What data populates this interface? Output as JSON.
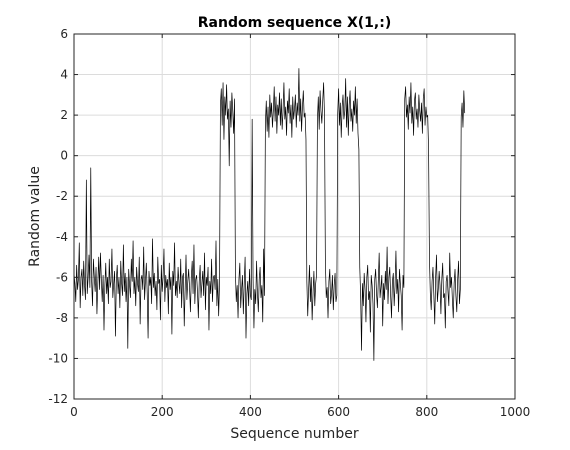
{
  "chart_data": {
    "type": "line",
    "title": "Random sequence X(1,:)",
    "xlabel": "Sequence number",
    "ylabel": "Random value",
    "xlim": [
      0,
      1000
    ],
    "ylim": [
      -12,
      6
    ],
    "xticks": [
      0,
      200,
      400,
      600,
      800,
      1000
    ],
    "yticks": [
      6,
      4,
      2,
      0,
      -2,
      -4,
      -6,
      -8,
      -10,
      -12
    ],
    "xtick_labels": [
      "0",
      "200",
      "400",
      "600",
      "800",
      "1000"
    ],
    "ytick_labels": [
      "6",
      "4",
      "2",
      "0",
      "-2",
      "-4",
      "-6",
      "-8",
      "-10",
      "-12"
    ],
    "grid": true,
    "line_color": "#000000",
    "series": [
      {
        "x_start": 0,
        "x_step": 2,
        "values": [
          -5.8,
          -6.3,
          -7.2,
          -5.4,
          -6.6,
          -6.1,
          -4.3,
          -7.5,
          -6.0,
          -5.6,
          -6.9,
          -5.2,
          -6.4,
          -7.1,
          -1.2,
          -6.8,
          -6.0,
          -4.9,
          -6.5,
          -0.6,
          -6.2,
          -7.4,
          -5.1,
          -6.0,
          -6.7,
          -5.5,
          -7.8,
          -6.3,
          -5.0,
          -6.6,
          -4.8,
          -6.1,
          -7.2,
          -5.9,
          -8.6,
          -6.4,
          -5.3,
          -6.8,
          -6.0,
          -7.3,
          -5.1,
          -6.5,
          -6.2,
          -4.6,
          -7.0,
          -6.3,
          -5.7,
          -8.9,
          -6.1,
          -5.4,
          -6.8,
          -6.0,
          -7.5,
          -5.2,
          -6.3,
          -6.9,
          -4.4,
          -6.7,
          -5.8,
          -7.2,
          -6.0,
          -9.5,
          -5.6,
          -6.4,
          -7.0,
          -5.1,
          -6.2,
          -4.2,
          -6.8,
          -6.0,
          -7.4,
          -5.5,
          -6.3,
          -6.7,
          -5.0,
          -8.3,
          -6.1,
          -5.9,
          -6.6,
          -4.5,
          -7.1,
          -6.2,
          -5.3,
          -6.8,
          -9.0,
          -5.7,
          -6.4,
          -6.0,
          -7.3,
          -4.1,
          -6.5,
          -5.8,
          -6.9,
          -6.2,
          -7.6,
          -5.0,
          -6.3,
          -6.1,
          -8.1,
          -5.4,
          -6.7,
          -6.0,
          -4.6,
          -7.2,
          -5.9,
          -6.5,
          -6.1,
          -7.8,
          -5.3,
          -6.6,
          -6.0,
          -8.8,
          -5.7,
          -6.4,
          -4.3,
          -6.9,
          -6.2,
          -7.0,
          -5.5,
          -6.3,
          -6.8,
          -5.1,
          -7.5,
          -6.0,
          -5.8,
          -8.4,
          -6.6,
          -4.9,
          -7.1,
          -6.2,
          -5.6,
          -6.5,
          -7.7,
          -6.0,
          -5.2,
          -6.8,
          -4.4,
          -7.3,
          -6.1,
          -5.9,
          -6.7,
          -8.0,
          -6.2,
          -5.4,
          -7.0,
          -6.3,
          -5.7,
          -6.9,
          -4.8,
          -7.6,
          -6.0,
          -6.4,
          -5.5,
          -8.6,
          -6.2,
          -6.8,
          -5.1,
          -7.2,
          -6.0,
          -5.9,
          -6.6,
          -4.2,
          -7.4,
          -6.1,
          -7.9,
          -6.3,
          2.5,
          3.3,
          1.5,
          3.6,
          0.8,
          2.9,
          2.0,
          3.5,
          1.8,
          2.3,
          -0.5,
          2.7,
          1.4,
          3.1,
          2.2,
          1.1,
          2.8,
          -5.8,
          -7.2,
          -6.4,
          -8.0,
          -6.1,
          -5.3,
          -7.5,
          -6.6,
          -5.9,
          -7.8,
          -6.3,
          -5.0,
          -9.0,
          -6.8,
          -6.2,
          -7.4,
          -5.6,
          -6.9,
          -7.1,
          1.8,
          -6.0,
          -8.5,
          -6.6,
          -7.3,
          -5.2,
          -6.8,
          -7.7,
          -6.1,
          -5.5,
          -7.0,
          -6.4,
          -8.2,
          -4.6,
          -6.9,
          1.6,
          2.7,
          1.2,
          2.4,
          0.9,
          3.0,
          1.9,
          2.6,
          1.4,
          2.2,
          3.4,
          1.7,
          2.9,
          1.1,
          2.5,
          2.0,
          3.1,
          1.5,
          2.8,
          1.3,
          2.2,
          3.6,
          1.8,
          2.4,
          1.0,
          2.7,
          2.1,
          3.3,
          1.6,
          2.5,
          0.9,
          2.9,
          1.8,
          2.3,
          3.0,
          1.4,
          2.6,
          2.0,
          4.3,
          1.7,
          2.8,
          1.2,
          2.4,
          3.2,
          1.9,
          2.1,
          0.8,
          -6.2,
          -7.9,
          -6.6,
          -5.4,
          -7.2,
          -6.0,
          -8.1,
          -6.8,
          -5.7,
          -7.4,
          -6.3,
          -5.9,
          1.8,
          2.9,
          1.3,
          3.2,
          2.2,
          1.6,
          2.7,
          3.6,
          2.0,
          -5.2,
          -7.0,
          -6.5,
          -8.0,
          -6.2,
          -5.6,
          -7.3,
          -6.8,
          -5.9,
          -7.6,
          -6.4,
          -5.8,
          -7.2,
          -6.9,
          2.1,
          3.3,
          1.5,
          2.6,
          0.9,
          2.4,
          3.0,
          1.8,
          2.2,
          3.8,
          1.4,
          2.9,
          1.0,
          2.5,
          3.2,
          1.7,
          2.3,
          1.2,
          2.7,
          2.0,
          3.4,
          1.6,
          2.8,
          1.1,
          0.3,
          -5.5,
          -6.9,
          -9.6,
          -6.3,
          -7.4,
          -5.8,
          -6.6,
          -8.2,
          -6.0,
          -5.4,
          -7.1,
          -6.7,
          -8.7,
          -5.9,
          -6.4,
          -7.3,
          -10.1,
          -6.1,
          -5.6,
          -6.8,
          -7.5,
          -6.2,
          -4.8,
          -7.0,
          -6.5,
          -5.9,
          -8.4,
          -6.3,
          -7.1,
          -5.7,
          -6.6,
          -4.5,
          -7.3,
          -6.0,
          -5.5,
          -6.9,
          -8.0,
          -6.2,
          -5.8,
          -7.4,
          -6.4,
          -4.7,
          -6.8,
          -6.1,
          -7.7,
          -5.6,
          -6.3,
          -6.9,
          -8.6,
          -5.9,
          -6.5,
          2.8,
          3.4,
          1.9,
          2.5,
          1.3,
          2.9,
          2.1,
          3.6,
          1.6,
          2.4,
          1.0,
          2.7,
          3.1,
          1.8,
          2.3,
          1.4,
          3.0,
          2.2,
          1.7,
          2.6,
          1.1,
          2.8,
          3.3,
          1.5,
          2.4,
          1.9,
          2.0,
          0.4,
          -5.1,
          -6.8,
          -7.6,
          -6.2,
          -5.5,
          -6.9,
          -8.3,
          -6.0,
          -4.9,
          -7.2,
          -6.6,
          -5.7,
          -6.4,
          -7.8,
          -6.1,
          -5.3,
          -7.0,
          -6.8,
          -8.5,
          -6.2,
          -5.9,
          -6.7,
          -7.4,
          -4.8,
          -6.5,
          -6.0,
          -7.1,
          -8.0,
          -6.3,
          -5.6,
          -6.9,
          -7.7,
          -6.1,
          -5.2,
          -7.3,
          -6.6,
          1.9,
          2.6,
          1.4,
          3.2,
          2.1
        ]
      }
    ]
  }
}
